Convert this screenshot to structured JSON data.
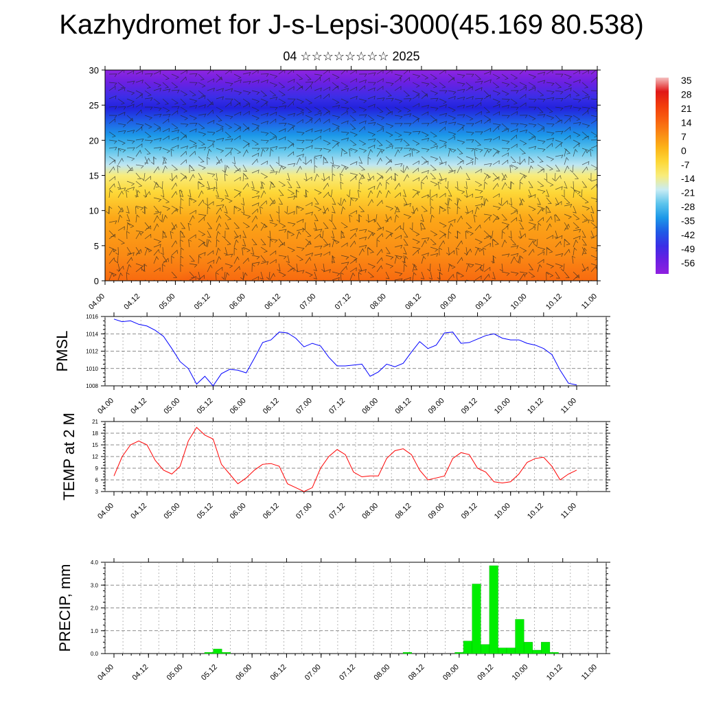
{
  "title": "Kazhydromet for J-s-Lepsi-3000(45.169 80.538)",
  "subtitle": "04 ☆☆☆☆☆☆☆☆ 2025",
  "time_labels": [
    "04.00",
    "04.12",
    "05.00",
    "05.12",
    "06.00",
    "06.12",
    "07.00",
    "07.12",
    "08.00",
    "08.12",
    "09.00",
    "09.12",
    "10.00",
    "10.12",
    "11.00"
  ],
  "chart_data": [
    {
      "type": "heatmap",
      "description_of_fields": "temperature by height with wind barbs",
      "x_categories": [
        "04.00",
        "04.12",
        "05.00",
        "05.12",
        "06.00",
        "06.12",
        "07.00",
        "07.12",
        "08.00",
        "08.12",
        "09.00",
        "09.12",
        "10.00",
        "10.12",
        "11.00"
      ],
      "ylim": [
        0,
        30
      ],
      "yticks": [
        0,
        5,
        10,
        15,
        20,
        25,
        30
      ],
      "colorbar_ticks": [
        35,
        28,
        21,
        14,
        7,
        0,
        -7,
        -14,
        -21,
        -28,
        -35,
        -42,
        -49,
        -56
      ],
      "colorbar_colors": [
        "#f5c0c0",
        "#e01818",
        "#f23c0c",
        "#f86010",
        "#fa8a14",
        "#fcb418",
        "#fdd838",
        "#f8ec7c",
        "#c8ecf4",
        "#5cc4ec",
        "#1c98e8",
        "#1f5ae6",
        "#3a2ee6",
        "#6a20e2",
        "#9020e0"
      ]
    },
    {
      "type": "line",
      "ylabel": "PMSL",
      "ylim": [
        1008,
        1016
      ],
      "yticks": [
        1008,
        1010,
        1012,
        1014,
        1016
      ],
      "color": "#0000ff",
      "x_hours": [
        0,
        3,
        6,
        9,
        12,
        15,
        18,
        21,
        24,
        27,
        30,
        33,
        36,
        39,
        42,
        45,
        48,
        51,
        54,
        57,
        60,
        63,
        66,
        69,
        72,
        75,
        78,
        81,
        84,
        87,
        90,
        93,
        96,
        99,
        102,
        105,
        108,
        111,
        114,
        117,
        120,
        123,
        126,
        129,
        132,
        135,
        138,
        141,
        144,
        147,
        150,
        153,
        156,
        159,
        162,
        165,
        168
      ],
      "values": [
        1015.7,
        1015.4,
        1015.5,
        1015.1,
        1014.9,
        1014.4,
        1013.7,
        1012.3,
        1010.8,
        1010.0,
        1008.2,
        1009.1,
        1008.0,
        1009.4,
        1009.9,
        1009.8,
        1009.5,
        1011.2,
        1013.0,
        1013.3,
        1014.2,
        1014.1,
        1013.5,
        1012.5,
        1012.9,
        1012.6,
        1011.3,
        1010.3,
        1010.3,
        1010.4,
        1010.5,
        1009.1,
        1009.6,
        1010.5,
        1010.2,
        1010.6,
        1011.9,
        1013.1,
        1012.3,
        1012.7,
        1014.1,
        1014.2,
        1012.9,
        1013.0,
        1013.4,
        1013.8,
        1014.0,
        1013.5,
        1013.3,
        1013.3,
        1012.9,
        1012.7,
        1012.3,
        1011.6,
        1009.8,
        1008.3,
        1008.1
      ]
    },
    {
      "type": "line",
      "ylabel": "TEMP at 2 M",
      "ylim": [
        3,
        21
      ],
      "yticks": [
        3,
        6,
        9,
        12,
        15,
        18,
        21
      ],
      "color": "#ff0000",
      "x_hours": [
        0,
        3,
        6,
        9,
        12,
        15,
        18,
        21,
        24,
        27,
        30,
        33,
        36,
        39,
        42,
        45,
        48,
        51,
        54,
        57,
        60,
        63,
        66,
        69,
        72,
        75,
        78,
        81,
        84,
        87,
        90,
        93,
        96,
        99,
        102,
        105,
        108,
        111,
        114,
        117,
        120,
        123,
        126,
        129,
        132,
        135,
        138,
        141,
        144,
        147,
        150,
        153,
        156,
        159,
        162,
        165,
        168
      ],
      "values": [
        7.0,
        12.0,
        15.0,
        16.0,
        15.0,
        11.0,
        8.5,
        7.5,
        9.5,
        16.0,
        19.5,
        17.5,
        16.5,
        10.0,
        7.5,
        5.0,
        6.5,
        8.5,
        10.0,
        10.2,
        9.5,
        5.0,
        4.0,
        3.0,
        4.0,
        9.0,
        12.0,
        13.8,
        12.5,
        8.0,
        6.8,
        7.0,
        7.0,
        11.5,
        13.5,
        14.0,
        12.5,
        8.5,
        6.0,
        6.5,
        7.0,
        11.5,
        13.0,
        12.5,
        9.0,
        8.0,
        5.5,
        5.2,
        5.5,
        7.5,
        10.5,
        11.5,
        11.8,
        9.5,
        6.0,
        7.5,
        8.5
      ]
    },
    {
      "type": "bar",
      "ylabel": "PRECIP, mm",
      "ylim": [
        0,
        4
      ],
      "yticks": [
        "0.0",
        "1.0",
        "2.0",
        "3.0",
        "4.0"
      ],
      "color": "#00ee00",
      "bar_hours": [
        33,
        36,
        39,
        102,
        120,
        123,
        126,
        129,
        132,
        135,
        138,
        141,
        144,
        147,
        150,
        153
      ],
      "values": [
        0.05,
        0.2,
        0.05,
        0.05,
        0.05,
        0.55,
        3.05,
        0.4,
        3.85,
        0.25,
        0.25,
        1.5,
        0.5,
        0.15,
        0.5,
        0.05
      ]
    }
  ]
}
